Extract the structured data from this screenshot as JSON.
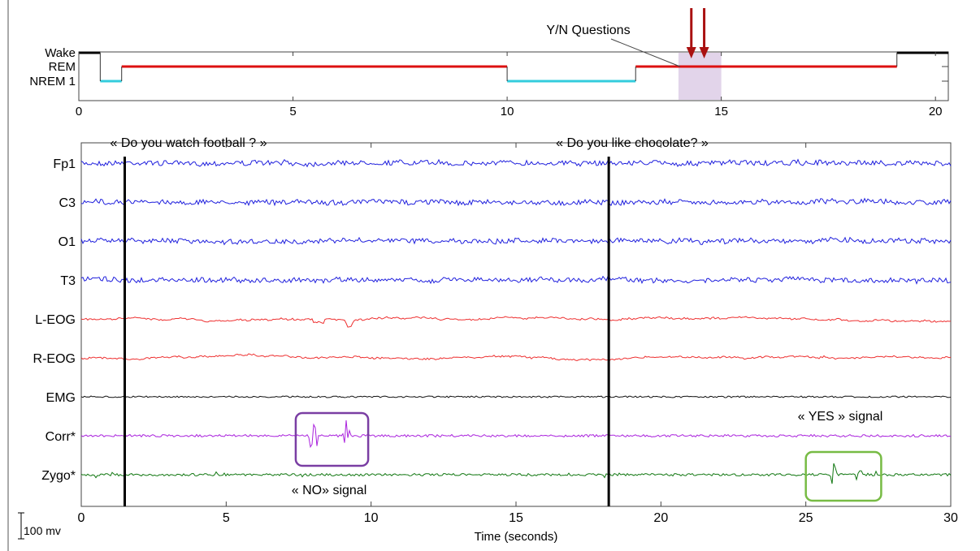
{
  "figure": {
    "scalebar_label": "100 mv"
  },
  "chart_data": [
    {
      "type": "line",
      "name": "hypnogram",
      "xlabel": "",
      "ylabel": "",
      "xlim": [
        0,
        20.3
      ],
      "xticks": [
        0,
        5,
        10,
        15,
        20
      ],
      "stages": [
        "Wake",
        "REM",
        "NREM 1"
      ],
      "segments": [
        {
          "stage": "Wake",
          "x0": 0,
          "x1": 0.5,
          "color": "#000000"
        },
        {
          "stage": "NREM 1",
          "x0": 0.5,
          "x1": 1.0,
          "color": "#33ccdd"
        },
        {
          "stage": "REM",
          "x0": 1.0,
          "x1": 10.0,
          "color": "#dd1111"
        },
        {
          "stage": "NREM 1",
          "x0": 10.0,
          "x1": 13.0,
          "color": "#33ccdd"
        },
        {
          "stage": "REM",
          "x0": 13.0,
          "x1": 19.1,
          "color": "#dd1111"
        },
        {
          "stage": "Wake",
          "x0": 19.1,
          "x1": 20.3,
          "color": "#000000"
        }
      ],
      "highlight": {
        "x0": 14.0,
        "x1": 15.0,
        "label": "Y/N Questions",
        "color": "#e2d4ea"
      },
      "arrows_x": [
        14.3,
        14.6
      ]
    },
    {
      "type": "line",
      "name": "polysomnography",
      "xlabel": "Time (seconds)",
      "xlim": [
        0,
        30
      ],
      "xticks": [
        0,
        5,
        10,
        15,
        20,
        25,
        30
      ],
      "channels": [
        {
          "label": "Fp1",
          "color": "#2020dd"
        },
        {
          "label": "C3",
          "color": "#2020dd"
        },
        {
          "label": "O1",
          "color": "#2020dd"
        },
        {
          "label": "T3",
          "color": "#2020dd"
        },
        {
          "label": "L-EOG",
          "color": "#ee3030"
        },
        {
          "label": "R-EOG",
          "color": "#ee3030"
        },
        {
          "label": "EMG",
          "color": "#111111"
        },
        {
          "label": "Corr*",
          "color": "#aa22dd"
        },
        {
          "label": "Zygo*",
          "color": "#117711"
        }
      ],
      "events": [
        {
          "x": 1.5,
          "label": "« Do you watch football ? »"
        },
        {
          "x": 18.2,
          "label": "« Do you like chocolate? »"
        }
      ],
      "annotations": [
        {
          "label": "« NO» signal",
          "channel": "Corr*",
          "x0": 7.4,
          "x1": 9.9,
          "color": "#7a3ea3"
        },
        {
          "label": "« YES » signal",
          "channel": "Zygo*",
          "x0": 25.0,
          "x1": 27.6,
          "color": "#77bb44"
        }
      ]
    }
  ]
}
